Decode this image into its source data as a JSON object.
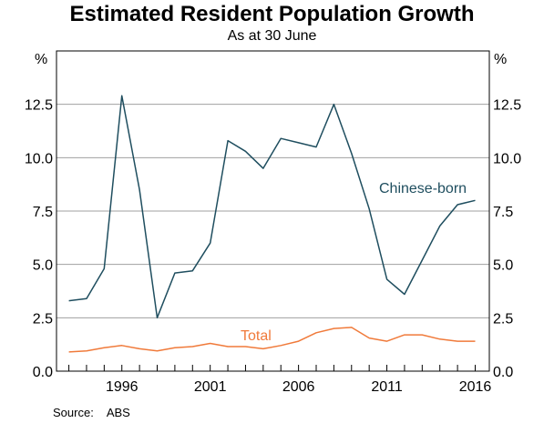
{
  "chart_data": {
    "type": "line",
    "title": "Estimated Resident Population Growth",
    "subtitle": "As at 30 June",
    "ylabel_left": "%",
    "ylabel_right": "%",
    "ylim": [
      0,
      15
    ],
    "xlim": [
      1992.3,
      2016.8
    ],
    "y_ticks": [
      "0.0",
      "2.5",
      "5.0",
      "7.5",
      "10.0",
      "12.5"
    ],
    "x_ticks": [
      "1996",
      "2001",
      "2006",
      "2011",
      "2016"
    ],
    "grid": true,
    "source_label": "Source:",
    "source_value": "ABS",
    "series": [
      {
        "name": "Chinese-born",
        "color": "#1f4e5f",
        "x": [
          1993,
          1994,
          1995,
          1996,
          1997,
          1998,
          1999,
          2000,
          2001,
          2002,
          2003,
          2004,
          2005,
          2006,
          2007,
          2008,
          2009,
          2010,
          2011,
          2012,
          2013,
          2014,
          2015,
          2016
        ],
        "values": [
          3.3,
          3.4,
          4.8,
          12.9,
          8.5,
          2.5,
          4.6,
          4.7,
          6.0,
          10.8,
          10.3,
          9.5,
          10.9,
          10.7,
          10.5,
          12.5,
          10.2,
          7.6,
          4.3,
          3.6,
          5.2,
          6.8,
          7.8,
          8.0
        ]
      },
      {
        "name": "Total",
        "color": "#f07a3a",
        "x": [
          1993,
          1994,
          1995,
          1996,
          1997,
          1998,
          1999,
          2000,
          2001,
          2002,
          2003,
          2004,
          2005,
          2006,
          2007,
          2008,
          2009,
          2010,
          2011,
          2012,
          2013,
          2014,
          2015,
          2016
        ],
        "values": [
          0.9,
          0.95,
          1.1,
          1.2,
          1.05,
          0.95,
          1.1,
          1.15,
          1.3,
          1.15,
          1.15,
          1.05,
          1.2,
          1.4,
          1.8,
          2.0,
          2.05,
          1.55,
          1.4,
          1.7,
          1.7,
          1.5,
          1.4,
          1.4
        ]
      }
    ]
  }
}
